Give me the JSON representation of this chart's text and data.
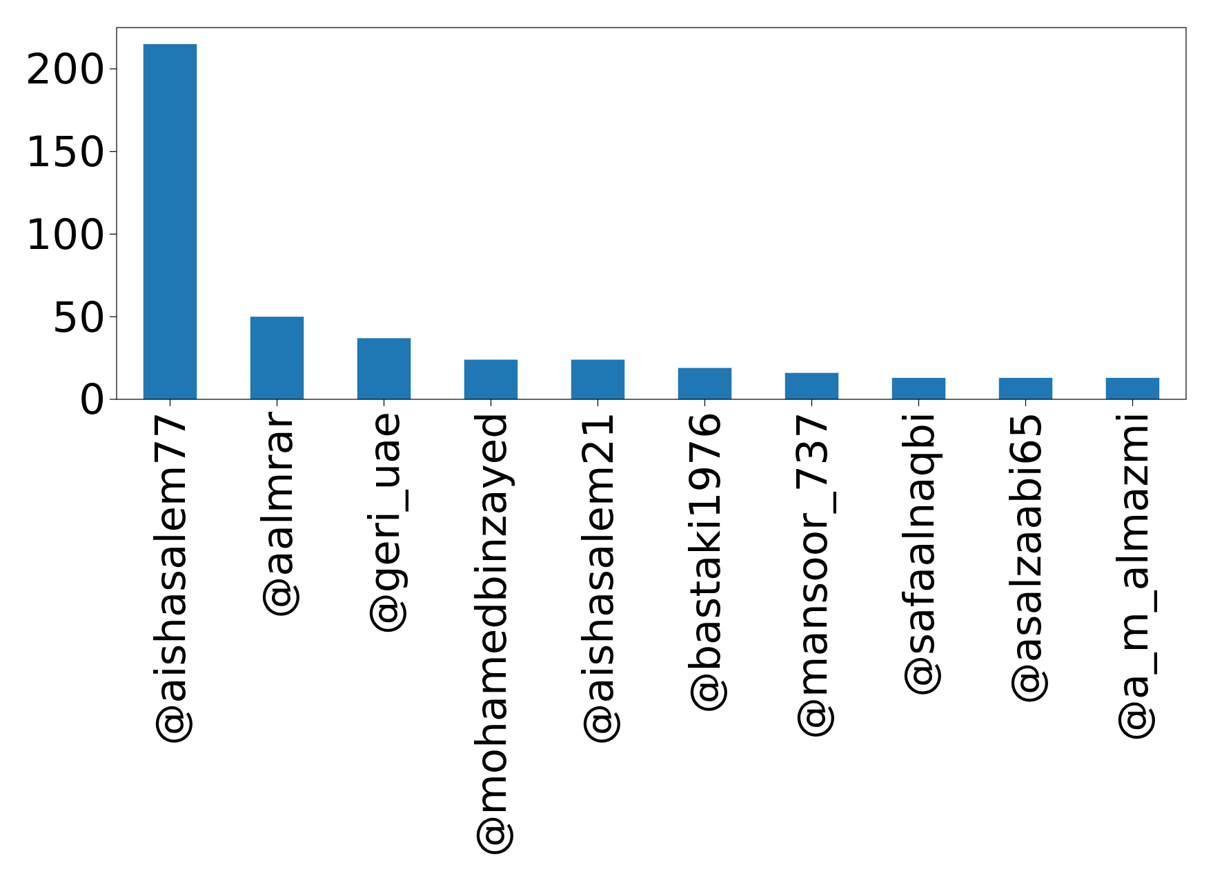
{
  "chart_data": {
    "type": "bar",
    "categories": [
      "@aishasalem77",
      "@aalmrar",
      "@geri_uae",
      "@mohamedbinzayed",
      "@aishasalem21",
      "@bastaki1976",
      "@mansoor_737",
      "@safaalnaqbi",
      "@asalzaabi65",
      "@a_m_almazmi"
    ],
    "values": [
      215,
      50,
      37,
      24,
      24,
      19,
      16,
      13,
      13,
      13
    ],
    "color": "#1f77b4",
    "ylim": [
      0,
      225
    ],
    "yticks": [
      0,
      50,
      100,
      150,
      200
    ],
    "grid": false
  }
}
